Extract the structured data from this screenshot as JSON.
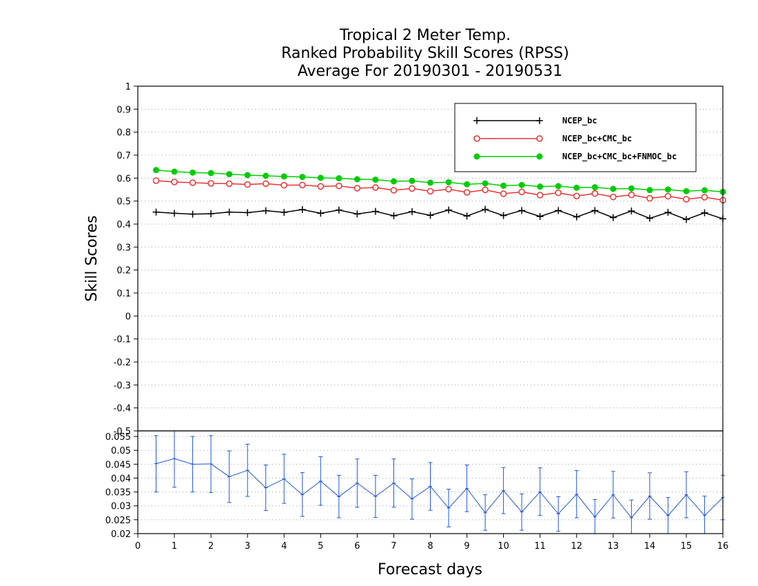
{
  "chart_data": [
    {
      "type": "line",
      "title": [
        "Tropical 2 Meter Temp.",
        "Ranked Probability Skill Scores (RPSS)",
        "Average For 20190301 - 20190531"
      ],
      "xlabel": "",
      "ylabel": "Skill Scores",
      "xlim": [
        0,
        16
      ],
      "ylim": [
        -0.5,
        1
      ],
      "y_ticks": [
        "1",
        "0.9",
        "0.8",
        "0.7",
        "0.6",
        "0.5",
        "0.4",
        "0.3",
        "0.2",
        "0.1",
        "0",
        "-0.1",
        "-0.2",
        "-0.3",
        "-0.4",
        "-0.5"
      ],
      "grid": "horizontal dotted",
      "legend_position": "top-right",
      "x": [
        0.5,
        1,
        1.5,
        2,
        2.5,
        3,
        3.5,
        4,
        4.5,
        5,
        5.5,
        6,
        6.5,
        7,
        7.5,
        8,
        8.5,
        9,
        9.5,
        10,
        10.5,
        11,
        11.5,
        12,
        12.5,
        13,
        13.5,
        14,
        14.5,
        15,
        15.5,
        16
      ],
      "series": [
        {
          "name": "NCEP_bc",
          "color": "#000000",
          "marker": "plus",
          "values": [
            0.452,
            0.447,
            0.443,
            0.445,
            0.452,
            0.45,
            0.458,
            0.451,
            0.463,
            0.447,
            0.461,
            0.444,
            0.455,
            0.436,
            0.454,
            0.438,
            0.461,
            0.435,
            0.464,
            0.437,
            0.459,
            0.433,
            0.459,
            0.431,
            0.459,
            0.428,
            0.457,
            0.425,
            0.451,
            0.42,
            0.449,
            0.423
          ]
        },
        {
          "name": "NCEP_bc+CMC_bc",
          "color": "#e83232",
          "marker": "open-circle",
          "values": [
            0.589,
            0.583,
            0.58,
            0.577,
            0.576,
            0.572,
            0.576,
            0.569,
            0.57,
            0.564,
            0.566,
            0.556,
            0.559,
            0.547,
            0.555,
            0.543,
            0.552,
            0.538,
            0.549,
            0.532,
            0.54,
            0.526,
            0.536,
            0.522,
            0.533,
            0.518,
            0.527,
            0.512,
            0.521,
            0.508,
            0.517,
            0.504
          ]
        },
        {
          "name": "NCEP_bc+CMC_bc+FNMOC_bc",
          "color": "#00cc00",
          "marker": "filled-circle",
          "values": [
            0.635,
            0.628,
            0.624,
            0.622,
            0.617,
            0.613,
            0.61,
            0.607,
            0.605,
            0.601,
            0.599,
            0.595,
            0.593,
            0.586,
            0.588,
            0.58,
            0.582,
            0.573,
            0.577,
            0.567,
            0.57,
            0.563,
            0.565,
            0.558,
            0.56,
            0.553,
            0.555,
            0.548,
            0.55,
            0.543,
            0.547,
            0.54
          ]
        }
      ]
    },
    {
      "type": "line",
      "title": "",
      "xlabel": "Forecast days",
      "ylabel": "",
      "xlim": [
        0,
        16
      ],
      "ylim": [
        0.02,
        0.057
      ],
      "x_ticks": [
        "0",
        "1",
        "2",
        "3",
        "4",
        "5",
        "6",
        "7",
        "8",
        "9",
        "10",
        "11",
        "12",
        "13",
        "14",
        "15",
        "16"
      ],
      "y_ticks": [
        "0.055",
        "0.05",
        "0.045",
        "0.04",
        "0.035",
        "0.03",
        "0.025",
        "0.02"
      ],
      "grid": "horizontal dotted",
      "x": [
        0.5,
        1,
        1.5,
        2,
        2.5,
        3,
        3.5,
        4,
        4.5,
        5,
        5.5,
        6,
        6.5,
        7,
        7.5,
        8,
        8.5,
        9,
        9.5,
        10,
        10.5,
        11,
        11.5,
        12,
        12.5,
        13,
        13.5,
        14,
        14.5,
        15,
        15.5,
        16
      ],
      "series": [
        {
          "name": "",
          "color": "#2255dd",
          "marker": "errorbar",
          "values": [
            0.0452,
            0.047,
            0.045,
            0.0451,
            0.0405,
            0.0428,
            0.0365,
            0.0397,
            0.034,
            0.0389,
            0.0333,
            0.0382,
            0.0334,
            0.0382,
            0.0325,
            0.037,
            0.0292,
            0.0363,
            0.0275,
            0.0355,
            0.0278,
            0.035,
            0.0271,
            0.0342,
            0.026,
            0.034,
            0.0257,
            0.0335,
            0.0265,
            0.034,
            0.0265,
            0.033
          ],
          "upper": [
            0.0553,
            0.0575,
            0.055,
            0.0553,
            0.0498,
            0.0522,
            0.0447,
            0.0486,
            0.042,
            0.0477,
            0.041,
            0.0469,
            0.041,
            0.0469,
            0.0397,
            0.0456,
            0.036,
            0.0447,
            0.034,
            0.0438,
            0.0343,
            0.0437,
            0.0333,
            0.0427,
            0.0323,
            0.0424,
            0.0321,
            0.0419,
            0.033,
            0.0423,
            0.0335,
            0.041
          ],
          "lower": [
            0.035,
            0.0367,
            0.035,
            0.0348,
            0.0312,
            0.0334,
            0.0283,
            0.0309,
            0.0262,
            0.0302,
            0.0257,
            0.0295,
            0.0258,
            0.0295,
            0.0252,
            0.0284,
            0.0224,
            0.0279,
            0.0212,
            0.0272,
            0.0212,
            0.0265,
            0.0208,
            0.0257,
            0.0197,
            0.0256,
            0.0193,
            0.0252,
            0.02,
            0.0257,
            0.0195,
            0.025
          ]
        }
      ]
    }
  ]
}
